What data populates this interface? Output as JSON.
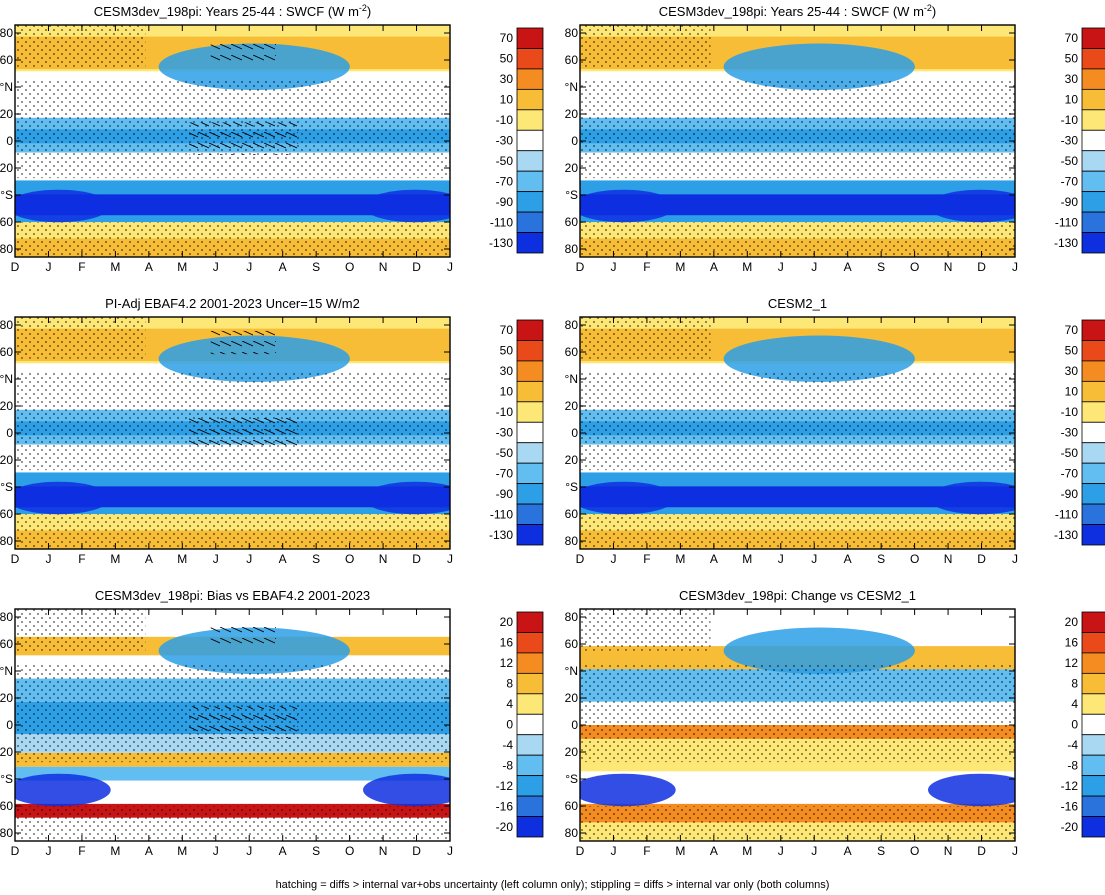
{
  "figure": {
    "caption": "hatching = diffs > internal var+obs uncertainty (left column only); stippling = diffs > internal var only (both columns)"
  },
  "chart_data": [
    {
      "type": "heatmap",
      "title": "CESM3dev_198pi: Years 25-44 : SWCF (W m",
      "title_sup": "-2",
      "title_tail": ")",
      "months": [
        "D",
        "J",
        "F",
        "M",
        "A",
        "M",
        "J",
        "J",
        "A",
        "S",
        "O",
        "N",
        "D",
        "J"
      ],
      "ylabels": [
        "80",
        "60",
        "°N",
        "20",
        "0",
        "20",
        "°S",
        "60",
        "80"
      ],
      "colorbar": [
        "70",
        "50",
        "30",
        "10",
        "-10",
        "-30",
        "-50",
        "-70",
        "-90",
        "-110",
        "-130"
      ],
      "scale": "abs",
      "hatching": true,
      "stippling": true
    },
    {
      "type": "heatmap",
      "title": "CESM3dev_198pi: Years 25-44 : SWCF (W m",
      "title_sup": "-2",
      "title_tail": ")",
      "months": [
        "D",
        "J",
        "F",
        "M",
        "A",
        "M",
        "J",
        "J",
        "A",
        "S",
        "O",
        "N",
        "D",
        "J"
      ],
      "ylabels": [
        "80",
        "60",
        "°N",
        "20",
        "0",
        "20",
        "°S",
        "60",
        "80"
      ],
      "colorbar": [
        "70",
        "50",
        "30",
        "10",
        "-10",
        "-30",
        "-50",
        "-70",
        "-90",
        "-110",
        "-130"
      ],
      "scale": "abs",
      "hatching": false,
      "stippling": true
    },
    {
      "type": "heatmap",
      "title": "PI-Adj EBAF4.2 2001-2023 Uncer=15 W/m2",
      "title_sup": "",
      "title_tail": "",
      "months": [
        "D",
        "J",
        "F",
        "M",
        "A",
        "M",
        "J",
        "J",
        "A",
        "S",
        "O",
        "N",
        "D",
        "J"
      ],
      "ylabels": [
        "80",
        "60",
        "°N",
        "20",
        "0",
        "20",
        "°S",
        "60",
        "80"
      ],
      "colorbar": [
        "70",
        "50",
        "30",
        "10",
        "-10",
        "-30",
        "-50",
        "-70",
        "-90",
        "-110",
        "-130"
      ],
      "scale": "abs",
      "hatching": true,
      "stippling": true
    },
    {
      "type": "heatmap",
      "title": "CESM2_1",
      "title_sup": "",
      "title_tail": "",
      "months": [
        "D",
        "J",
        "F",
        "M",
        "A",
        "M",
        "J",
        "J",
        "A",
        "S",
        "O",
        "N",
        "D",
        "J"
      ],
      "ylabels": [
        "80",
        "60",
        "°N",
        "20",
        "0",
        "20",
        "°S",
        "60",
        "80"
      ],
      "colorbar": [
        "70",
        "50",
        "30",
        "10",
        "-10",
        "-30",
        "-50",
        "-70",
        "-90",
        "-110",
        "-130"
      ],
      "scale": "abs",
      "hatching": false,
      "stippling": true
    },
    {
      "type": "heatmap",
      "title": "CESM3dev_198pi: Bias vs EBAF4.2 2001-2023",
      "title_sup": "",
      "title_tail": "",
      "months": [
        "D",
        "J",
        "F",
        "M",
        "A",
        "M",
        "J",
        "J",
        "A",
        "S",
        "O",
        "N",
        "D",
        "J"
      ],
      "ylabels": [
        "80",
        "60",
        "°N",
        "20",
        "0",
        "20",
        "°S",
        "60",
        "80"
      ],
      "colorbar": [
        "20",
        "16",
        "12",
        "8",
        "4",
        "0",
        "-4",
        "-8",
        "-12",
        "-16",
        "-20"
      ],
      "scale": "bias",
      "hatching": true,
      "stippling": true
    },
    {
      "type": "heatmap",
      "title": "CESM3dev_198pi: Change vs CESM2_1",
      "title_sup": "",
      "title_tail": "",
      "months": [
        "D",
        "J",
        "F",
        "M",
        "A",
        "M",
        "J",
        "J",
        "A",
        "S",
        "O",
        "N",
        "D",
        "J"
      ],
      "ylabels": [
        "80",
        "60",
        "°N",
        "20",
        "0",
        "20",
        "°S",
        "60",
        "80"
      ],
      "colorbar": [
        "20",
        "16",
        "12",
        "8",
        "4",
        "0",
        "-4",
        "-8",
        "-12",
        "-16",
        "-20"
      ],
      "scale": "change",
      "hatching": false,
      "stippling": true
    }
  ]
}
